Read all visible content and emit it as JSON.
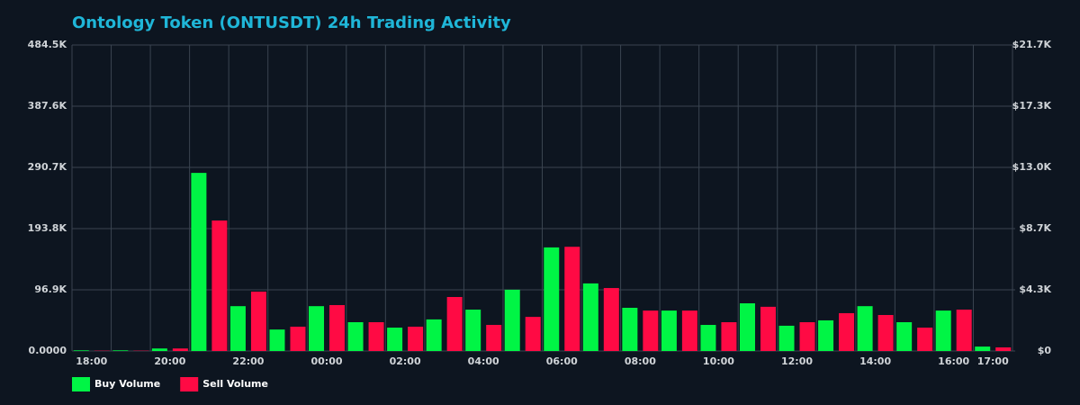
{
  "chart_data": {
    "type": "bar",
    "title": "Ontology Token (ONTUSDT) 24h Trading Activity",
    "categories": [
      "18:00",
      null,
      "20:00",
      null,
      "22:00",
      null,
      "00:00",
      null,
      "02:00",
      null,
      "04:00",
      null,
      "06:00",
      null,
      "08:00",
      null,
      "10:00",
      null,
      "12:00",
      null,
      "14:00",
      null,
      "16:00",
      "17:00"
    ],
    "series": [
      {
        "name": "Buy Volume",
        "color": "#00f545",
        "values": [
          1000,
          1000,
          4000,
          282000,
          71000,
          34000,
          71000,
          45600,
          37000,
          50000,
          65500,
          97000,
          164000,
          107000,
          68400,
          64000,
          41300,
          75500,
          40000,
          48500,
          71000,
          45600,
          64000,
          7000
        ]
      },
      {
        "name": "Sell Volume",
        "color": "#ff0a44",
        "values": [
          500,
          500,
          4000,
          206600,
          94000,
          38500,
          72700,
          45600,
          38500,
          85500,
          41300,
          54000,
          165000,
          99700,
          64000,
          64000,
          45600,
          70000,
          45600,
          59900,
          57000,
          37000,
          65500,
          5700
        ]
      }
    ],
    "ylim": [
      0,
      484500
    ],
    "yticks": [
      {
        "value": 0,
        "label": "0.0000"
      },
      {
        "value": 96900,
        "label": "96.9K"
      },
      {
        "value": 193800,
        "label": "193.8K"
      },
      {
        "value": 290700,
        "label": "290.7K"
      },
      {
        "value": 387600,
        "label": "387.6K"
      },
      {
        "value": 484500,
        "label": "484.5K"
      }
    ],
    "y2lim": [
      0,
      21680
    ],
    "y2ticks": [
      {
        "value": 0,
        "label": "$0"
      },
      {
        "value": 4336,
        "label": "$4.3K"
      },
      {
        "value": 8672,
        "label": "$8.7K"
      },
      {
        "value": 13008,
        "label": "$13.0K"
      },
      {
        "value": 17344,
        "label": "$17.3K"
      },
      {
        "value": 21680,
        "label": "$21.7K"
      }
    ],
    "grid": true,
    "legend": "bottom-left"
  }
}
